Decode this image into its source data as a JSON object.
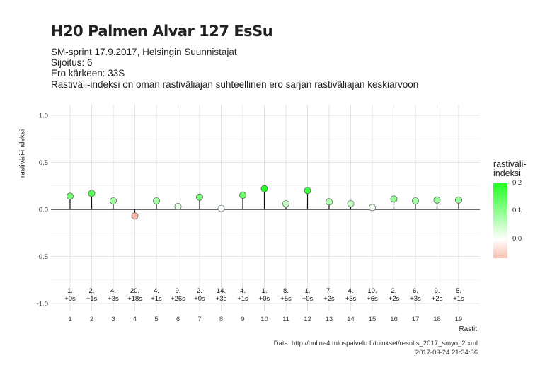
{
  "chart_data": {
    "type": "scatter",
    "title": "H20 Palmen Alvar 127 EsSu",
    "subtitle_lines": [
      "SM-sprint 17.9.2017, Helsingin Suunnistajat",
      "Sijoitus: 6",
      "Ero kärkeen: 33S",
      "Rastiväli-indeksi on oman rastiväliajan suhteellinen ero sarjan rastiväliajan keskiarvoon"
    ],
    "xlabel": "Rastit",
    "ylabel": "rastiväli-indeksi",
    "ylim": [
      -1.05,
      1.1
    ],
    "yticks": [
      -1.0,
      -0.5,
      0.0,
      0.5,
      1.0
    ],
    "ytick_labels": [
      "-1.0",
      "-0.5",
      "0.0",
      "0.5",
      "1.0"
    ],
    "x": [
      1,
      2,
      3,
      4,
      5,
      6,
      7,
      8,
      9,
      10,
      11,
      12,
      13,
      14,
      15,
      16,
      17,
      18,
      19
    ],
    "x_tick_labels": [
      "1",
      "2",
      "3",
      "4",
      "5",
      "6",
      "7",
      "8",
      "9",
      "10",
      "11",
      "12",
      "13",
      "14",
      "15",
      "16",
      "17",
      "18",
      "19"
    ],
    "values": [
      0.14,
      0.17,
      0.09,
      -0.07,
      0.09,
      0.03,
      0.13,
      0.01,
      0.15,
      0.22,
      0.06,
      0.2,
      0.08,
      0.06,
      0.02,
      0.11,
      0.09,
      0.1,
      0.1
    ],
    "annotation_rank": [
      "1.",
      "2.",
      "4.",
      "20.",
      "4.",
      "9.",
      "2.",
      "14.",
      "4.",
      "1.",
      "8.",
      "1.",
      "7.",
      "4.",
      "10.",
      "2.",
      "6.",
      "9.",
      "5."
    ],
    "annotation_diff": [
      "+0s",
      "+1s",
      "+3s",
      "+18s",
      "+1s",
      "+26s",
      "+0s",
      "+3s",
      "+1s",
      "+0s",
      "+5s",
      "+0s",
      "+2s",
      "+3s",
      "+6s",
      "+2s",
      "+3s",
      "+2s",
      "+1s"
    ],
    "legend": {
      "title_lines": [
        "rastiväli-",
        "indeksi"
      ],
      "ticks": [
        0.2,
        0.1,
        0.0
      ],
      "tick_labels": [
        "0.2",
        "0.1",
        "0.0"
      ],
      "placement": "right"
    },
    "grid": true,
    "colors": {
      "high": "#22ff22",
      "mid": "#ffffff",
      "low": "#f5b3a3"
    },
    "caption_lines": [
      "Data: http://online4.tulospalvelu.fi/tulokset/results_2017_smyo_2.xml",
      "2017-09-24 21:34:36"
    ]
  }
}
